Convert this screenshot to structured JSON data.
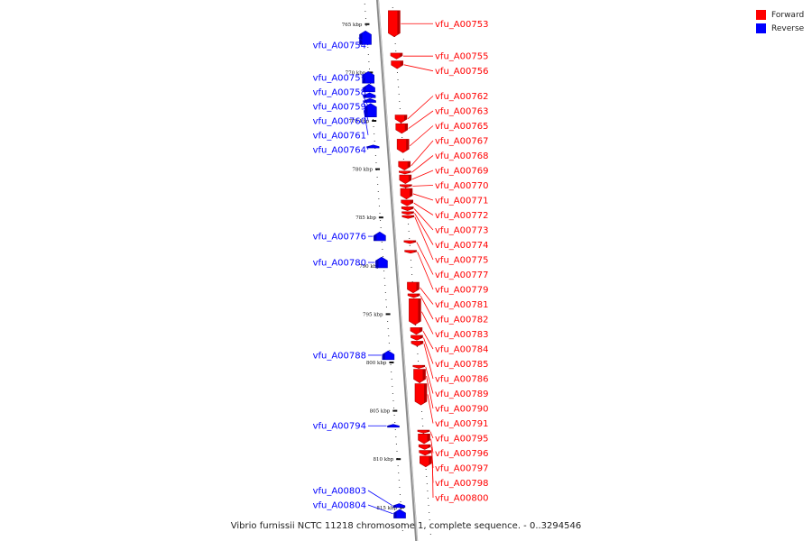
{
  "caption": "Vibrio furnissii NCTC 11218 chromosome 1, complete sequence. - 0..3294546",
  "legend": {
    "forward": {
      "label": "Forward",
      "color": "#ff0000"
    },
    "reverse": {
      "label": "Reverse",
      "color": "#0000ff"
    }
  },
  "axis": {
    "ticks": [
      {
        "kbp": 765,
        "label": "765 kbp"
      },
      {
        "kbp": 770,
        "label": "770 kbp"
      },
      {
        "kbp": 775,
        "label": "775 kbp"
      },
      {
        "kbp": 780,
        "label": "780 kbp"
      },
      {
        "kbp": 785,
        "label": "785 kbp"
      },
      {
        "kbp": 790,
        "label": "790 kbp"
      },
      {
        "kbp": 795,
        "label": "795 kbp"
      },
      {
        "kbp": 800,
        "label": "800 kbp"
      },
      {
        "kbp": 805,
        "label": "805 kbp"
      },
      {
        "kbp": 810,
        "label": "810 kbp"
      },
      {
        "kbp": 815,
        "label": "815 kbp"
      }
    ]
  },
  "genes": {
    "forward": [
      {
        "label": "vfu_A00753",
        "start": 763.6,
        "end": 766.3
      },
      {
        "label": "vfu_A00755",
        "start": 768.0,
        "end": 768.6
      },
      {
        "label": "vfu_A00756",
        "start": 768.8,
        "end": 769.6
      },
      {
        "label": "vfu_A00762",
        "start": 774.4,
        "end": 775.2
      },
      {
        "label": "vfu_A00763",
        "start": 775.3,
        "end": 776.3
      },
      {
        "label": "vfu_A00765",
        "start": 776.9,
        "end": 778.3
      },
      {
        "label": "vfu_A00767",
        "start": 779.2,
        "end": 780.1
      },
      {
        "label": "vfu_A00768",
        "start": 780.2,
        "end": 780.5
      },
      {
        "label": "vfu_A00769",
        "start": 780.6,
        "end": 781.5
      },
      {
        "label": "vfu_A00770",
        "start": 781.6,
        "end": 781.9
      },
      {
        "label": "vfu_A00771",
        "start": 782.0,
        "end": 783.1
      },
      {
        "label": "vfu_A00772",
        "start": 783.2,
        "end": 783.8
      },
      {
        "label": "vfu_A00773",
        "start": 783.9,
        "end": 784.3
      },
      {
        "label": "vfu_A00774",
        "start": 784.4,
        "end": 784.7
      },
      {
        "label": "vfu_A00775",
        "start": 784.8,
        "end": 785.1
      },
      {
        "label": "vfu_A00777",
        "start": 787.4,
        "end": 787.7
      },
      {
        "label": "vfu_A00779",
        "start": 788.4,
        "end": 788.7
      },
      {
        "label": "vfu_A00781",
        "start": 791.7,
        "end": 792.8
      },
      {
        "label": "vfu_A00782",
        "start": 792.9,
        "end": 793.3
      },
      {
        "label": "vfu_A00783",
        "start": 793.4,
        "end": 796.1
      },
      {
        "label": "vfu_A00784",
        "start": 796.4,
        "end": 797.1
      },
      {
        "label": "vfu_A00785",
        "start": 797.2,
        "end": 797.7
      },
      {
        "label": "vfu_A00786",
        "start": 797.8,
        "end": 798.3
      },
      {
        "label": "vfu_A00789",
        "start": 800.3,
        "end": 800.6
      },
      {
        "label": "vfu_A00790",
        "start": 800.7,
        "end": 802.1
      },
      {
        "label": "vfu_A00791",
        "start": 802.2,
        "end": 804.4
      },
      {
        "label": "vfu_A00795",
        "start": 807.0,
        "end": 807.3
      },
      {
        "label": "vfu_A00796",
        "start": 807.4,
        "end": 808.4
      },
      {
        "label": "vfu_A00797",
        "start": 808.5,
        "end": 809.0
      },
      {
        "label": "vfu_A00798",
        "start": 809.1,
        "end": 809.6
      },
      {
        "label": "vfu_A00800",
        "start": 809.7,
        "end": 810.8
      }
    ],
    "reverse": [
      {
        "label": "vfu_A00754",
        "start": 765.7,
        "end": 767.1
      },
      {
        "label": "vfu_A00757",
        "start": 769.9,
        "end": 771.1
      },
      {
        "label": "vfu_A00758",
        "start": 771.2,
        "end": 772.0
      },
      {
        "label": "vfu_A00759",
        "start": 772.1,
        "end": 772.6
      },
      {
        "label": "vfu_A00760",
        "start": 772.7,
        "end": 773.1
      },
      {
        "label": "vfu_A00761",
        "start": 773.2,
        "end": 774.6
      },
      {
        "label": "vfu_A00764",
        "start": 777.5,
        "end": 777.8
      },
      {
        "label": "vfu_A00776",
        "start": 786.5,
        "end": 787.4
      },
      {
        "label": "vfu_A00780",
        "start": 789.1,
        "end": 790.2
      },
      {
        "label": "vfu_A00788",
        "start": 798.8,
        "end": 799.7
      },
      {
        "label": "vfu_A00794",
        "start": 806.4,
        "end": 806.7
      },
      {
        "label": "vfu_A00803",
        "start": 814.6,
        "end": 815.0
      },
      {
        "label": "vfu_A00804",
        "start": 815.2,
        "end": 816.1
      }
    ]
  }
}
